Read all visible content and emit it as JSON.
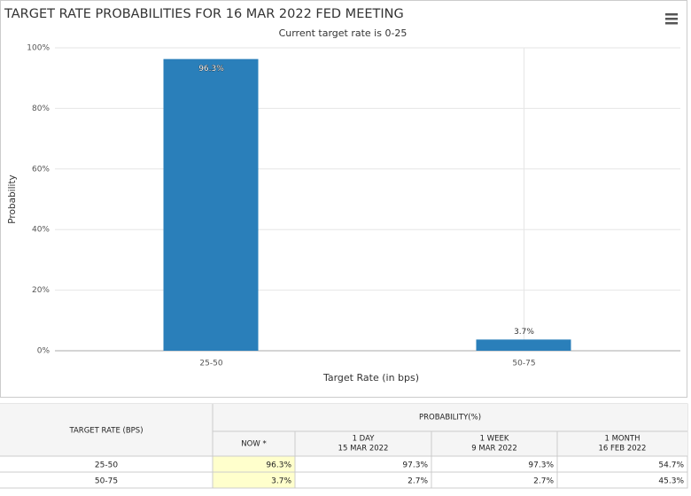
{
  "chart_data": {
    "type": "bar",
    "title": "TARGET RATE PROBABILITIES FOR 16 MAR 2022 FED MEETING",
    "subtitle": "Current target rate is 0-25",
    "x_label": "Target Rate (in bps)",
    "y_label": "Probability",
    "categories": [
      "25-50",
      "50-75"
    ],
    "values": [
      96.3,
      3.7
    ],
    "value_labels": [
      "96.3%",
      "3.7%"
    ],
    "color": "#2a7fba",
    "ylim": [
      0,
      100
    ],
    "yticks": [
      {
        "value": 0,
        "label": "0%"
      },
      {
        "value": 20,
        "label": "20%"
      },
      {
        "value": 40,
        "label": "40%"
      },
      {
        "value": 60,
        "label": "60%"
      },
      {
        "value": 80,
        "label": "80%"
      },
      {
        "value": 100,
        "label": "100%"
      }
    ],
    "grid": true
  },
  "table": {
    "row_header": "TARGET RATE (BPS)",
    "group_header": "PROBABILITY(%)",
    "columns": [
      {
        "label": "NOW *"
      },
      {
        "label": "1 DAY",
        "date": "15 MAR 2022"
      },
      {
        "label": "1 WEEK",
        "date": "9 MAR 2022"
      },
      {
        "label": "1 MONTH",
        "date": "16 FEB 2022"
      }
    ],
    "rows": [
      [
        "25-50",
        "96.3%",
        "97.3%",
        "97.3%",
        "54.7%"
      ],
      [
        "50-75",
        "3.7%",
        "2.7%",
        "2.7%",
        "45.3%"
      ]
    ]
  }
}
